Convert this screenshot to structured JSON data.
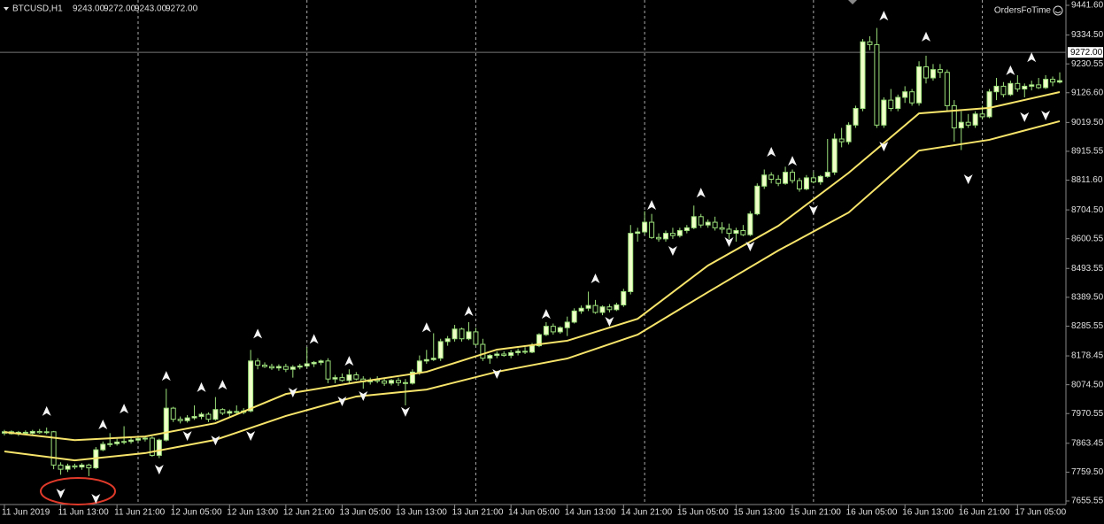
{
  "chart_data": {
    "type": "candlestick",
    "symbol": "BTCUSD,H1",
    "header_prices": [
      "9243.00",
      "9272.00",
      "9243.00",
      "9272.00"
    ],
    "indicator": "OrdersFoTime",
    "ylim": [
      7655.55,
      9441.6
    ],
    "yticks": [
      {
        "value": 9441.6,
        "label": "9441.60"
      },
      {
        "value": 9334.5,
        "label": "9334.50"
      },
      {
        "value": 9230.55,
        "label": "9230.55"
      },
      {
        "value": 9126.6,
        "label": "9126.60"
      },
      {
        "value": 9019.5,
        "label": "9019.50"
      },
      {
        "value": 8915.55,
        "label": "8915.55"
      },
      {
        "value": 8811.6,
        "label": "8811.60"
      },
      {
        "value": 8704.5,
        "label": "8704.50"
      },
      {
        "value": 8600.55,
        "label": "8600.55"
      },
      {
        "value": 8493.55,
        "label": "8493.55"
      },
      {
        "value": 8389.5,
        "label": "8389.50"
      },
      {
        "value": 8285.55,
        "label": "8285.55"
      },
      {
        "value": 8178.45,
        "label": "8178.45"
      },
      {
        "value": 8074.5,
        "label": "8074.50"
      },
      {
        "value": 7970.55,
        "label": "7970.55"
      },
      {
        "value": 7863.45,
        "label": "7863.45"
      },
      {
        "value": 7759.5,
        "label": "7759.50"
      },
      {
        "value": 7655.55,
        "label": "7655.55"
      }
    ],
    "price_line": {
      "value": 9272,
      "label": "9272.00"
    },
    "xticks": [
      {
        "value": 0,
        "label": "11 Jun 2019"
      },
      {
        "value": 8,
        "label": "11 Jun 13:00"
      },
      {
        "value": 16,
        "label": "11 Jun 21:00"
      },
      {
        "value": 24,
        "label": "12 Jun 05:00"
      },
      {
        "value": 32,
        "label": "12 Jun 13:00"
      },
      {
        "value": 40,
        "label": "12 Jun 21:00"
      },
      {
        "value": 48,
        "label": "13 Jun 05:00"
      },
      {
        "value": 56,
        "label": "13 Jun 13:00"
      },
      {
        "value": 64,
        "label": "13 Jun 21:00"
      },
      {
        "value": 72,
        "label": "14 Jun 05:00"
      },
      {
        "value": 80,
        "label": "14 Jun 13:00"
      },
      {
        "value": 88,
        "label": "14 Jun 21:00"
      },
      {
        "value": 96,
        "label": "15 Jun 05:00"
      },
      {
        "value": 104,
        "label": "15 Jun 13:00"
      },
      {
        "value": 112,
        "label": "15 Jun 21:00"
      },
      {
        "value": 120,
        "label": "16 Jun 05:00"
      },
      {
        "value": 128,
        "label": "16 Jun 13:00"
      },
      {
        "value": 136,
        "label": "16 Jun 21:00"
      },
      {
        "value": 144,
        "label": "17 Jun 05:00"
      }
    ],
    "x_grid": [
      19,
      43,
      67,
      91,
      115,
      139
    ],
    "xlim": [
      0,
      150
    ],
    "bull_color": "#f0ffc8",
    "bear_color": "#000000",
    "wick_color": "#9be07a",
    "candles": [
      [
        7900,
        7912,
        7892,
        7905
      ],
      [
        7905,
        7910,
        7895,
        7898
      ],
      [
        7898,
        7908,
        7890,
        7903
      ],
      [
        7903,
        7910,
        7896,
        7900
      ],
      [
        7900,
        7912,
        7894,
        7906
      ],
      [
        7906,
        7915,
        7898,
        7902
      ],
      [
        7902,
        7920,
        7896,
        7905
      ],
      [
        7905,
        7908,
        7770,
        7785
      ],
      [
        7785,
        7795,
        7750,
        7770
      ],
      [
        7770,
        7790,
        7760,
        7782
      ],
      [
        7782,
        7790,
        7770,
        7778
      ],
      [
        7778,
        7792,
        7768,
        7785
      ],
      [
        7785,
        7790,
        7745,
        7775
      ],
      [
        7775,
        7850,
        7770,
        7840
      ],
      [
        7840,
        7870,
        7835,
        7860
      ],
      [
        7860,
        7900,
        7850,
        7862
      ],
      [
        7862,
        7880,
        7855,
        7868
      ],
      [
        7868,
        7925,
        7860,
        7870
      ],
      [
        7870,
        7885,
        7862,
        7875
      ],
      [
        7875,
        7885,
        7868,
        7880
      ],
      [
        7880,
        7890,
        7870,
        7882
      ],
      [
        7882,
        7888,
        7815,
        7820
      ],
      [
        7820,
        7880,
        7810,
        7875
      ],
      [
        7875,
        8060,
        7870,
        7990
      ],
      [
        7990,
        7995,
        7940,
        7950
      ],
      [
        7950,
        7960,
        7935,
        7945
      ],
      [
        7945,
        7965,
        7938,
        7955
      ],
      [
        7955,
        8000,
        7948,
        7960
      ],
      [
        7960,
        7975,
        7950,
        7968
      ],
      [
        7968,
        7975,
        7940,
        7950
      ],
      [
        7950,
        8030,
        7945,
        7985
      ],
      [
        7985,
        7990,
        7965,
        7972
      ],
      [
        7972,
        7985,
        7960,
        7978
      ],
      [
        7978,
        8000,
        7968,
        7975
      ],
      [
        7975,
        7990,
        7968,
        7980
      ],
      [
        7980,
        8200,
        7975,
        8160
      ],
      [
        8160,
        8170,
        8130,
        8145
      ],
      [
        8145,
        8155,
        8135,
        8140
      ],
      [
        8140,
        8150,
        8128,
        8135
      ],
      [
        8135,
        8148,
        8125,
        8140
      ],
      [
        8140,
        8150,
        8120,
        8130
      ],
      [
        8130,
        8145,
        8100,
        8138
      ],
      [
        8138,
        8150,
        8130,
        8142
      ],
      [
        8142,
        8210,
        8135,
        8150
      ],
      [
        8150,
        8160,
        8138,
        8155
      ],
      [
        8155,
        8165,
        8145,
        8160
      ],
      [
        8160,
        8170,
        8080,
        8095
      ],
      [
        8095,
        8110,
        8080,
        8100
      ],
      [
        8100,
        8115,
        8085,
        8090
      ],
      [
        8090,
        8130,
        8080,
        8110
      ],
      [
        8110,
        8120,
        8090,
        8095
      ],
      [
        8095,
        8105,
        8060,
        8085
      ],
      [
        8085,
        8100,
        8075,
        8092
      ],
      [
        8092,
        8105,
        8080,
        8088
      ],
      [
        8088,
        8098,
        8070,
        8080
      ],
      [
        8080,
        8095,
        8072,
        8090
      ],
      [
        8090,
        8100,
        8070,
        8082
      ],
      [
        8082,
        8095,
        8000,
        8080
      ],
      [
        8080,
        8130,
        8075,
        8120
      ],
      [
        8120,
        8180,
        8110,
        8160
      ],
      [
        8160,
        8200,
        8150,
        8165
      ],
      [
        8165,
        8260,
        8160,
        8170
      ],
      [
        8170,
        8240,
        8160,
        8230
      ],
      [
        8230,
        8250,
        8215,
        8240
      ],
      [
        8240,
        8290,
        8230,
        8275
      ],
      [
        8275,
        8280,
        8230,
        8240
      ],
      [
        8240,
        8300,
        8235,
        8265
      ],
      [
        8265,
        8280,
        8215,
        8220
      ],
      [
        8220,
        8240,
        8160,
        8170
      ],
      [
        8170,
        8185,
        8150,
        8180
      ],
      [
        8180,
        8195,
        8170,
        8185
      ],
      [
        8185,
        8195,
        8175,
        8180
      ],
      [
        8180,
        8200,
        8170,
        8190
      ],
      [
        8190,
        8205,
        8180,
        8195
      ],
      [
        8195,
        8210,
        8185,
        8192
      ],
      [
        8192,
        8225,
        8188,
        8215
      ],
      [
        8215,
        8260,
        8210,
        8255
      ],
      [
        8255,
        8300,
        8250,
        8285
      ],
      [
        8285,
        8295,
        8255,
        8265
      ],
      [
        8265,
        8285,
        8258,
        8280
      ],
      [
        8280,
        8320,
        8250,
        8300
      ],
      [
        8300,
        8350,
        8295,
        8340
      ],
      [
        8340,
        8360,
        8330,
        8350
      ],
      [
        8350,
        8410,
        8340,
        8360
      ],
      [
        8360,
        8380,
        8330,
        8335
      ],
      [
        8335,
        8360,
        8325,
        8355
      ],
      [
        8355,
        8365,
        8335,
        8345
      ],
      [
        8345,
        8370,
        8340,
        8362
      ],
      [
        8362,
        8420,
        8355,
        8410
      ],
      [
        8410,
        8650,
        8400,
        8620
      ],
      [
        8620,
        8640,
        8590,
        8625
      ],
      [
        8625,
        8700,
        8615,
        8660
      ],
      [
        8660,
        8690,
        8600,
        8605
      ],
      [
        8605,
        8620,
        8590,
        8600
      ],
      [
        8600,
        8630,
        8590,
        8620
      ],
      [
        8620,
        8640,
        8600,
        8612
      ],
      [
        8612,
        8640,
        8605,
        8630
      ],
      [
        8630,
        8650,
        8620,
        8640
      ],
      [
        8640,
        8720,
        8635,
        8680
      ],
      [
        8680,
        8690,
        8640,
        8650
      ],
      [
        8650,
        8670,
        8640,
        8660
      ],
      [
        8660,
        8680,
        8630,
        8640
      ],
      [
        8640,
        8660,
        8620,
        8635
      ],
      [
        8635,
        8655,
        8600,
        8620
      ],
      [
        8620,
        8640,
        8590,
        8630
      ],
      [
        8630,
        8650,
        8610,
        8615
      ],
      [
        8615,
        8700,
        8610,
        8690
      ],
      [
        8690,
        8800,
        8685,
        8790
      ],
      [
        8790,
        8850,
        8780,
        8830
      ],
      [
        8830,
        8840,
        8800,
        8815
      ],
      [
        8815,
        8830,
        8790,
        8800
      ],
      [
        8800,
        8860,
        8795,
        8840
      ],
      [
        8840,
        8850,
        8800,
        8810
      ],
      [
        8810,
        8820,
        8770,
        8780
      ],
      [
        8780,
        8830,
        8775,
        8820
      ],
      [
        8820,
        8840,
        8800,
        8805
      ],
      [
        8805,
        8830,
        8795,
        8825
      ],
      [
        8825,
        8960,
        8820,
        8840
      ],
      [
        8840,
        8980,
        8830,
        8960
      ],
      [
        8960,
        9000,
        8930,
        8950
      ],
      [
        8950,
        9020,
        8940,
        9010
      ],
      [
        9010,
        9080,
        9000,
        9070
      ],
      [
        9070,
        9320,
        9060,
        9310
      ],
      [
        9310,
        9330,
        9280,
        9300
      ],
      [
        9300,
        9360,
        9000,
        9010
      ],
      [
        9010,
        9110,
        9000,
        9100
      ],
      [
        9100,
        9140,
        9060,
        9070
      ],
      [
        9070,
        9120,
        9060,
        9110
      ],
      [
        9110,
        9150,
        9090,
        9130
      ],
      [
        9130,
        9140,
        9080,
        9090
      ],
      [
        9090,
        9240,
        9080,
        9220
      ],
      [
        9220,
        9260,
        9160,
        9180
      ],
      [
        9180,
        9230,
        9170,
        9210
      ],
      [
        9210,
        9230,
        9180,
        9200
      ],
      [
        9200,
        9210,
        9060,
        9080
      ],
      [
        9080,
        9100,
        8950,
        9000
      ],
      [
        9000,
        9060,
        8920,
        9020
      ],
      [
        9020,
        9050,
        9000,
        9010
      ],
      [
        9010,
        9060,
        9000,
        9050
      ],
      [
        9050,
        9080,
        9030,
        9040
      ],
      [
        9040,
        9140,
        9035,
        9130
      ],
      [
        9130,
        9180,
        9100,
        9150
      ],
      [
        9150,
        9165,
        9110,
        9120
      ],
      [
        9120,
        9170,
        9115,
        9160
      ],
      [
        9160,
        9190,
        9130,
        9140
      ],
      [
        9140,
        9160,
        9110,
        9150
      ],
      [
        9150,
        9170,
        9135,
        9155
      ],
      [
        9155,
        9180,
        9140,
        9145
      ],
      [
        9145,
        9190,
        9140,
        9175
      ],
      [
        9175,
        9185,
        9150,
        9165
      ],
      [
        9165,
        9200,
        9160,
        9170
      ]
    ],
    "ma_x": [
      0,
      10,
      20,
      30,
      40,
      50,
      60,
      70,
      80,
      90,
      100,
      110,
      120,
      130,
      140,
      150
    ],
    "series": [
      {
        "color": "#f7e46a",
        "values": [
          7904,
          7875,
          7888,
          7936,
          8041,
          8083,
          8121,
          8201,
          8233,
          8312,
          8504,
          8647,
          8838,
          9052,
          9072,
          9129
        ]
      },
      {
        "color": "#f7e46a",
        "values": [
          7834,
          7802,
          7828,
          7876,
          7962,
          8032,
          8057,
          8121,
          8169,
          8255,
          8408,
          8558,
          8695,
          8918,
          8957,
          9024
        ]
      }
    ],
    "fractals_up": {
      "x": [
        6,
        14,
        17,
        23,
        28,
        31,
        36,
        44,
        49,
        60,
        66,
        77,
        84,
        92,
        99,
        109,
        112,
        125,
        131,
        143,
        146
      ],
      "values": [
        7978,
        7930,
        7987,
        8105,
        8064,
        8073,
        8257,
        8238,
        8159,
        8280,
        8338,
        8328,
        8456,
        8721,
        8765,
        8912,
        8880,
        9403,
        9327,
        9206,
        9253
      ]
    },
    "fractals_down": {
      "x": [
        8,
        13,
        22,
        26,
        30,
        35,
        41,
        48,
        51,
        57,
        70,
        86,
        95,
        103,
        106,
        115,
        125,
        137,
        145,
        148
      ],
      "values": [
        7684,
        7665,
        7770,
        7891,
        7875,
        7891,
        8048,
        8016,
        8035,
        7978,
        8115,
        8303,
        8558,
        8590,
        8574,
        8705,
        8934,
        8816,
        9040,
        9046
      ]
    }
  }
}
